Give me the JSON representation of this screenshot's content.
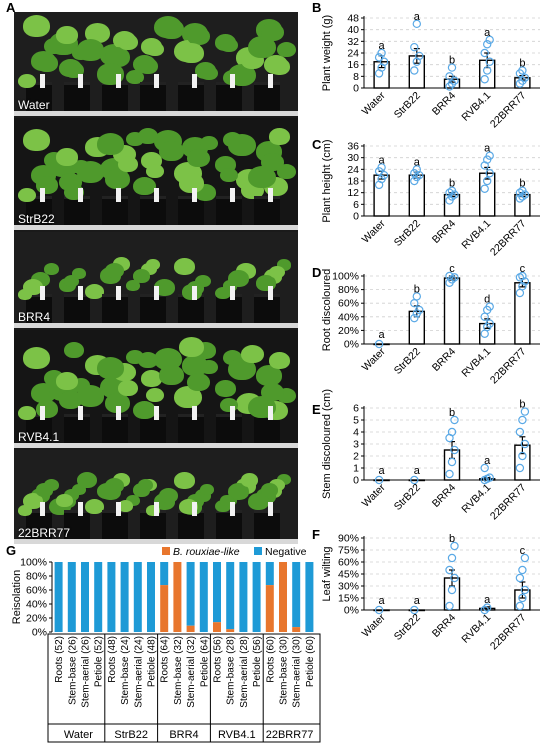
{
  "panels": {
    "A": "A",
    "B": "B",
    "C": "C",
    "D": "D",
    "E": "E",
    "F": "F",
    "G": "G"
  },
  "photo_rows": [
    "Water",
    "StrB22",
    "BRR4",
    "RVB4.1",
    "22BRR77"
  ],
  "colors": {
    "bar_edge": "#000000",
    "point": "#5aa9e6",
    "rouxiae": "#e8762d",
    "negative": "#1e9ad6",
    "leaf": "#4f9a2c",
    "leaf_light": "#7cc247"
  },
  "chart_data": [
    {
      "panel": "B",
      "type": "bar",
      "categories": [
        "Water",
        "StrB22",
        "BRR4",
        "RVB4.1",
        "22BRR77"
      ],
      "values": [
        18,
        22,
        6,
        19,
        7
      ],
      "errors": [
        4,
        5,
        2,
        5,
        1.5
      ],
      "letters": [
        "a",
        "a",
        "b",
        "a",
        "b"
      ],
      "ylabel": "Plant weight (g)",
      "yticks": [
        "0",
        "8",
        "16",
        "24",
        "32",
        "40",
        "48"
      ],
      "ylim": [
        0,
        48
      ],
      "points": [
        [
          10,
          14,
          18,
          21,
          24
        ],
        [
          12,
          18,
          22,
          28,
          44
        ],
        [
          1,
          3,
          5,
          8,
          14
        ],
        [
          6,
          12,
          18,
          24,
          30,
          33
        ],
        [
          3,
          5,
          7,
          10,
          12
        ]
      ]
    },
    {
      "panel": "C",
      "type": "bar",
      "categories": [
        "Water",
        "StrB22",
        "BRR4",
        "RVB4.1",
        "22BRR77"
      ],
      "values": [
        21,
        21,
        11,
        22,
        11
      ],
      "errors": [
        2,
        1.5,
        1,
        3,
        1
      ],
      "letters": [
        "a",
        "a",
        "b",
        "a",
        "b"
      ],
      "ylabel": "Plant height (cm)",
      "yticks": [
        "0",
        "6",
        "12",
        "18",
        "24",
        "30",
        "36"
      ],
      "ylim": [
        0,
        36
      ],
      "points": [
        [
          16,
          19,
          21,
          23,
          25
        ],
        [
          18,
          20,
          21,
          22,
          24
        ],
        [
          8,
          10,
          11,
          12,
          13
        ],
        [
          14,
          18,
          22,
          26,
          29,
          31
        ],
        [
          9,
          10,
          11,
          12,
          13
        ]
      ]
    },
    {
      "panel": "D",
      "type": "bar",
      "categories": [
        "Water",
        "StrB22",
        "BRR4",
        "RVB4.1",
        "22BRR77"
      ],
      "values": [
        0,
        48,
        97,
        30,
        90
      ],
      "errors": [
        0,
        8,
        3,
        7,
        6
      ],
      "letters": [
        "a",
        "b",
        "c",
        "d",
        "c"
      ],
      "ylabel": "Root discoloured",
      "yticks": [
        "0%",
        "20%",
        "40%",
        "60%",
        "80%",
        "100%"
      ],
      "ylim": [
        0,
        100
      ],
      "points": [
        [
          0
        ],
        [
          38,
          45,
          50,
          60,
          70
        ],
        [
          90,
          95,
          98,
          100
        ],
        [
          15,
          25,
          30,
          40,
          50,
          55
        ],
        [
          75,
          85,
          92,
          98,
          100
        ]
      ]
    },
    {
      "panel": "E",
      "type": "bar",
      "categories": [
        "Water",
        "StrB22",
        "BRR4",
        "RVB4.1",
        "22BRR77"
      ],
      "values": [
        0,
        0,
        2.5,
        0.1,
        2.9
      ],
      "errors": [
        0,
        0,
        0.7,
        0.1,
        0.7
      ],
      "letters": [
        "a",
        "a",
        "b",
        "a",
        "b"
      ],
      "ylabel": "Stem discoloured (cm)",
      "yticks": [
        "0",
        "1",
        "2",
        "3",
        "4",
        "5",
        "6"
      ],
      "ylim": [
        0,
        6
      ],
      "points": [
        [
          0
        ],
        [
          0
        ],
        [
          0.5,
          1.5,
          2.5,
          3.5,
          4,
          5
        ],
        [
          0,
          0.1,
          0.2,
          1
        ],
        [
          1,
          2,
          3,
          4,
          5,
          5.7
        ]
      ]
    },
    {
      "panel": "F",
      "type": "bar",
      "categories": [
        "Water",
        "StrB22",
        "BRR4",
        "RVB4.1",
        "22BRR77"
      ],
      "values": [
        0,
        0,
        40,
        2,
        25
      ],
      "errors": [
        0,
        0,
        10,
        2,
        10
      ],
      "letters": [
        "a",
        "a",
        "b",
        "a",
        "c"
      ],
      "ylabel": "Leaf wilting",
      "yticks": [
        "0%",
        "15%",
        "30%",
        "45%",
        "60%",
        "75%",
        "90%"
      ],
      "ylim": [
        0,
        90
      ],
      "points": [
        [
          0
        ],
        [
          0
        ],
        [
          5,
          25,
          40,
          50,
          65,
          80
        ],
        [
          0,
          3
        ],
        [
          5,
          15,
          25,
          40,
          50,
          65
        ]
      ]
    },
    {
      "panel": "G",
      "type": "stacked-bar",
      "ylabel": "Reisolation",
      "yticks": [
        "0%",
        "20%",
        "40%",
        "60%",
        "80%",
        "100%"
      ],
      "ylim": [
        0,
        100
      ],
      "legend": [
        "B. rouxiae-like",
        "Negative"
      ],
      "groups": [
        "Water",
        "StrB22",
        "BRR4",
        "RVB4.1",
        "22BRR77"
      ],
      "categories": [
        "Roots (52)",
        "Stem-base (26)",
        "Stem-aerial (26)",
        "Petiole (52)",
        "Roots (48)",
        "Stem-base (24)",
        "Stem-aerial (24)",
        "Petiole (48)",
        "Roots (64)",
        "Stem-base (32)",
        "Stem-aerial (32)",
        "Petiole (64)",
        "Roots (56)",
        "Stem-base (28)",
        "Stem-aerial (28)",
        "Petiole (56)",
        "Roots (60)",
        "Stem-base (30)",
        "Stem-aerial (30)",
        "Petiole (60)"
      ],
      "rouxiae": [
        0,
        0,
        0,
        0,
        0,
        0,
        0,
        0,
        67,
        100,
        9,
        0,
        14,
        4,
        0,
        0,
        67,
        100,
        7,
        0
      ]
    }
  ]
}
